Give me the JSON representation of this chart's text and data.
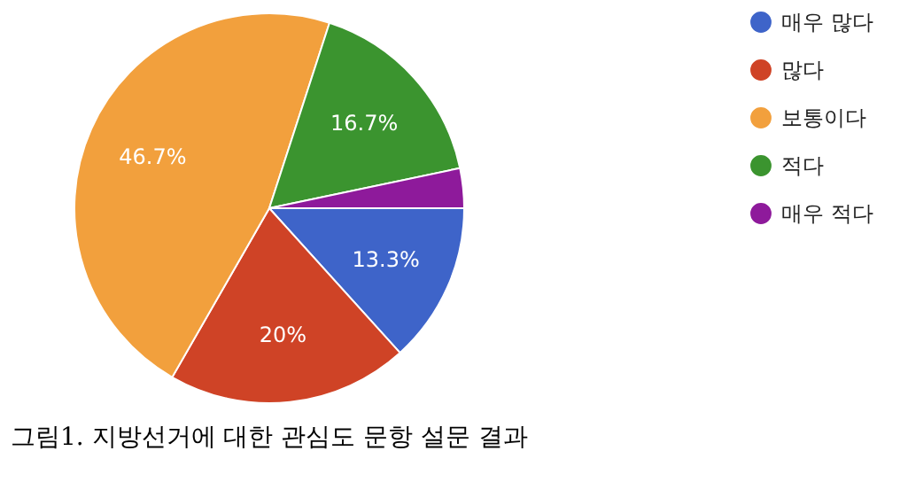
{
  "chart_data": {
    "type": "pie",
    "categories": [
      "매우 많다",
      "많다",
      "보통이다",
      "적다",
      "매우 적다"
    ],
    "values": [
      13.3,
      20,
      46.7,
      16.7,
      3.3
    ],
    "colors": [
      "#3e64c9",
      "#cf4326",
      "#f2a03d",
      "#3b942f",
      "#8e1a9b"
    ],
    "value_labels": [
      "13.3%",
      "20%",
      "46.7%",
      "16.7%",
      null
    ],
    "legend": "top right",
    "annotations": [
      "그림1. 지방선거에 대한 관심도 문항 설문 결과"
    ]
  }
}
